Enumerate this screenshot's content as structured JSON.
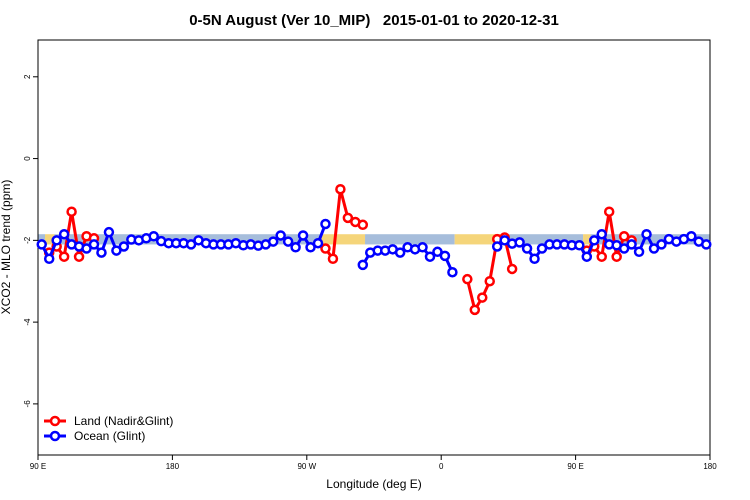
{
  "chart_data": {
    "type": "line",
    "title": "0-5N August (Ver 10_MIP)   2015-01-01 to 2020-12-31",
    "x_label": "Longitude (deg E)",
    "y_label": "XCO2 - MLO trend (ppm)",
    "xlim": [
      90,
      540
    ],
    "ylim": [
      -7.25,
      2.9
    ],
    "xticks": [
      {
        "value": 90,
        "label": "90 E"
      },
      180,
      {
        "value": 270,
        "label": "90 W"
      },
      {
        "value": 360,
        "label": "0"
      },
      {
        "value": 450,
        "label": "90 E"
      },
      {
        "value": 540,
        "label": "180"
      }
    ],
    "yticks": [
      2,
      0,
      -2,
      -4,
      -6
    ],
    "legend": "bottom-left",
    "strip": {
      "ylim": [
        -1.85,
        -2.1
      ],
      "segments": [
        {
          "xlim": [
            90,
            94.7
          ],
          "color": "#a6bddb"
        },
        {
          "xlim": [
            94.7,
            101
          ],
          "color": "#f5d57a"
        },
        {
          "xlim": [
            101,
            279
          ],
          "color": "#a6bddb"
        },
        {
          "xlim": [
            279,
            309
          ],
          "color": "#f5d57a"
        },
        {
          "xlim": [
            309,
            369
          ],
          "color": "#a6bddb"
        },
        {
          "xlim": [
            369,
            403
          ],
          "color": "#f5d57a"
        },
        {
          "xlim": [
            403,
            455
          ],
          "color": "#a6bddb"
        },
        {
          "xlim": [
            455,
            460
          ],
          "color": "#f5d57a"
        },
        {
          "xlim": [
            460,
            540
          ],
          "color": "#a6bddb"
        }
      ]
    },
    "x": [
      92.5,
      97.5,
      102.5,
      107.5,
      112.5,
      117.5,
      122.5,
      127.5,
      132.5,
      137.5,
      142.5,
      147.5,
      152.5,
      157.5,
      162.5,
      167.5,
      172.5,
      177.5,
      182.5,
      187.5,
      192.5,
      197.5,
      202.5,
      207.5,
      212.5,
      217.5,
      222.5,
      227.5,
      232.5,
      237.5,
      242.5,
      247.5,
      252.5,
      257.5,
      262.5,
      267.5,
      272.5,
      277.5,
      282.5,
      287.5,
      292.5,
      297.5,
      302.5,
      307.5,
      312.5,
      317.5,
      322.5,
      327.5,
      332.5,
      337.5,
      342.5,
      347.5,
      352.5,
      357.5,
      362.5,
      367.5,
      372.5,
      377.5,
      382.5,
      387.5,
      392.5,
      397.5,
      402.5,
      407.5,
      412.5,
      417.5,
      422.5,
      427.5,
      432.5,
      437.5,
      442.5,
      447.5,
      452.5,
      457.5,
      462.5,
      467.5,
      472.5,
      477.5,
      482.5,
      487.5,
      492.5,
      497.5,
      502.5,
      507.5,
      512.5,
      517.5,
      522.5,
      527.5,
      532.5,
      537.5
    ],
    "series": [
      {
        "name": "Land (Nadir&Glint)",
        "color": "#ff0000",
        "values": [
          null,
          -2.3,
          -2.15,
          -2.4,
          -1.3,
          -2.4,
          -1.9,
          -1.95,
          null,
          null,
          null,
          null,
          null,
          null,
          null,
          null,
          null,
          null,
          null,
          null,
          null,
          null,
          null,
          null,
          null,
          null,
          null,
          null,
          null,
          null,
          null,
          null,
          null,
          null,
          null,
          null,
          null,
          null,
          -2.2,
          -2.45,
          -0.75,
          -1.45,
          -1.55,
          -1.62,
          null,
          null,
          null,
          null,
          null,
          null,
          null,
          null,
          null,
          null,
          null,
          null,
          null,
          -2.95,
          -3.7,
          -3.4,
          -3.0,
          -1.97,
          -1.93,
          -2.7,
          null,
          null,
          null,
          null,
          null,
          null,
          null,
          null,
          null,
          -2.25,
          -2.15,
          -2.4,
          -1.3,
          -2.4,
          -1.9,
          -2.0,
          null,
          null,
          null,
          null,
          null,
          null,
          null,
          null,
          null,
          null
        ]
      },
      {
        "name": "Ocean (Glint)",
        "color": "#0000ff",
        "values": [
          -2.1,
          -2.45,
          -2.0,
          -1.85,
          -2.1,
          -2.15,
          -2.2,
          -2.1,
          -2.3,
          -1.8,
          -2.25,
          -2.15,
          -1.98,
          -2.0,
          -1.95,
          -1.9,
          -2.02,
          -2.07,
          -2.07,
          -2.07,
          -2.1,
          -2.0,
          -2.07,
          -2.1,
          -2.1,
          -2.1,
          -2.07,
          -2.12,
          -2.1,
          -2.13,
          -2.1,
          -2.03,
          -1.88,
          -2.03,
          -2.17,
          -1.88,
          -2.17,
          -2.07,
          -1.6,
          null,
          null,
          null,
          null,
          -2.6,
          -2.3,
          -2.25,
          -2.25,
          -2.22,
          -2.3,
          -2.17,
          -2.22,
          -2.17,
          -2.4,
          -2.28,
          -2.38,
          -2.78,
          null,
          null,
          null,
          null,
          null,
          -2.15,
          -2.0,
          -2.08,
          -2.05,
          -2.2,
          -2.45,
          -2.2,
          -2.1,
          -2.1,
          -2.1,
          -2.12,
          -2.12,
          -2.4,
          -2.0,
          -1.85,
          -2.1,
          -2.12,
          -2.2,
          -2.1,
          -2.28,
          -1.85,
          -2.2,
          -2.1,
          -1.97,
          -2.03,
          -1.97,
          -1.9,
          -2.03,
          -2.1
        ]
      }
    ]
  }
}
